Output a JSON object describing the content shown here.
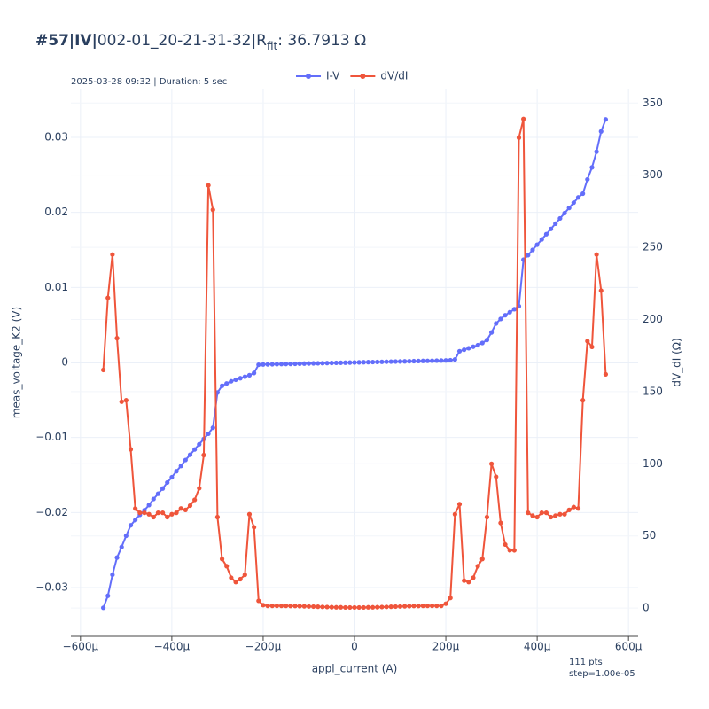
{
  "chart_data": {
    "type": "line",
    "title_bold": "#57|IV|",
    "title_main": "002-01_20-21-31-32|R",
    "title_sub": "fit",
    "title_tail": ": 36.7913 Ω",
    "subtitle": "2025-03-28 09:32 | Duration: 5 sec",
    "annotations": [
      "111 pts",
      "step=1.00e-05"
    ],
    "x_label": "appl_current (A)",
    "y_label": "meas_voltage_K2 (V)",
    "y2_label": "dV_dI (Ω)",
    "legend": "top",
    "grid": true,
    "xlim": [
      -0.000621,
      0.000621
    ],
    "ylim": [
      -0.0365,
      0.0365
    ],
    "y2lim": [
      -19.6,
      360
    ],
    "xticks": [
      {
        "value": -0.0006,
        "label": "−600µ"
      },
      {
        "value": -0.0004,
        "label": "−400µ"
      },
      {
        "value": -0.0002,
        "label": "−200µ"
      },
      0,
      {
        "value": 0.0002,
        "label": "200µ"
      },
      {
        "value": 0.0004,
        "label": "400µ"
      },
      {
        "value": 0.0006,
        "label": "600µ"
      }
    ],
    "yticks": [
      {
        "value": -0.03,
        "label": "−0.03"
      },
      {
        "value": -0.02,
        "label": "−0.02"
      },
      {
        "value": -0.01,
        "label": "−0.01"
      },
      0,
      0.01,
      0.02,
      0.03
    ],
    "y2ticks": [
      0,
      50,
      100,
      150,
      200,
      250,
      300,
      350
    ],
    "x": [
      -0.00055,
      -0.00054,
      -0.00053,
      -0.00052,
      -0.00051,
      -0.0005,
      -0.00049,
      -0.00048,
      -0.00047,
      -0.00046,
      -0.00045,
      -0.00044,
      -0.00043,
      -0.00042,
      -0.00041,
      -0.0004,
      -0.00039,
      -0.00038,
      -0.00037,
      -0.00036,
      -0.00035,
      -0.00034,
      -0.00033,
      -0.00032,
      -0.00031,
      -0.0003,
      -0.00029,
      -0.00028,
      -0.00027,
      -0.00026,
      -0.00025,
      -0.00024,
      -0.00023,
      -0.00022,
      -0.00021,
      -0.0002,
      -0.00019,
      -0.00018,
      -0.00017,
      -0.00016,
      -0.00015,
      -0.00014,
      -0.00013,
      -0.00012,
      -0.00011,
      -0.0001,
      -9e-05,
      -8e-05,
      -7e-05,
      -6e-05,
      -5e-05,
      -4e-05,
      -3e-05,
      -2e-05,
      -1e-05,
      0,
      1e-05,
      2e-05,
      3e-05,
      4e-05,
      5e-05,
      6e-05,
      7e-05,
      8e-05,
      9e-05,
      0.0001,
      0.00011,
      0.00012,
      0.00013,
      0.00014,
      0.00015,
      0.00016,
      0.00017,
      0.00018,
      0.00019,
      0.0002,
      0.00021,
      0.00022,
      0.00023,
      0.00024,
      0.00025,
      0.00026,
      0.00027,
      0.00028,
      0.00029,
      0.0003,
      0.00031,
      0.00032,
      0.00033,
      0.00034,
      0.00035,
      0.00036,
      0.00037,
      0.00038,
      0.00039,
      0.0004,
      0.00041,
      0.00042,
      0.00043,
      0.00044,
      0.00045,
      0.00046,
      0.00047,
      0.00048,
      0.00049,
      0.0005,
      0.00051,
      0.00052,
      0.00053,
      0.00054,
      0.00055
    ],
    "series": [
      {
        "name": "I-V",
        "color": "#636efa",
        "axis": "y",
        "values": [
          -0.0327,
          -0.0311,
          -0.0283,
          -0.026,
          -0.0246,
          -0.0231,
          -0.0217,
          -0.021,
          -0.0203,
          -0.0197,
          -0.019,
          -0.0182,
          -0.0175,
          -0.0168,
          -0.016,
          -0.0153,
          -0.0145,
          -0.0138,
          -0.013,
          -0.0123,
          -0.0116,
          -0.0109,
          -0.0102,
          -0.0095,
          -0.0087,
          -0.004,
          -0.0031,
          -0.0028,
          -0.0025,
          -0.0023,
          -0.0021,
          -0.0019,
          -0.0017,
          -0.0014,
          -0.0003,
          -0.00027,
          -0.000257,
          -0.000243,
          -0.00023,
          -0.000216,
          -0.000203,
          -0.000189,
          -0.000176,
          -0.000162,
          -0.000149,
          -0.000135,
          -0.000122,
          -0.000108,
          -9.45e-05,
          -8.1e-05,
          -6.75e-05,
          -5.4e-05,
          -4.05e-05,
          -2.7e-05,
          -1.35e-05,
          0,
          1.35e-05,
          2.7e-05,
          4.05e-05,
          5.4e-05,
          6.75e-05,
          8.1e-05,
          9.45e-05,
          0.000108,
          0.000122,
          0.000135,
          0.000149,
          0.000162,
          0.000176,
          0.000189,
          0.000203,
          0.000216,
          0.00023,
          0.000243,
          0.000257,
          0.00027,
          0.0003,
          0.0004,
          0.0015,
          0.0017,
          0.0019,
          0.0021,
          0.0023,
          0.0026,
          0.003,
          0.004,
          0.0052,
          0.0058,
          0.0063,
          0.0067,
          0.0071,
          0.0075,
          0.0137,
          0.0143,
          0.015,
          0.0157,
          0.0164,
          0.0171,
          0.0178,
          0.0185,
          0.0192,
          0.0199,
          0.0206,
          0.0213,
          0.022,
          0.0225,
          0.0244,
          0.026,
          0.0281,
          0.0308,
          0.0324
        ]
      },
      {
        "name": "dV/dI",
        "color": "#ef553b",
        "axis": "y2",
        "values": [
          165,
          215,
          245,
          187,
          143,
          144,
          110,
          69,
          66,
          66,
          65,
          63,
          66,
          66,
          63,
          65,
          66,
          69,
          68,
          71,
          75,
          83,
          106,
          293,
          276,
          63,
          34,
          29,
          21,
          18,
          20,
          23,
          65,
          56,
          5,
          2,
          1.5,
          1.5,
          1.5,
          1.5,
          1.5,
          1.4,
          1.4,
          1.3,
          1.2,
          1.1,
          1,
          0.9,
          0.8,
          0.7,
          0.6,
          0.5,
          0.5,
          0.4,
          0.4,
          0.4,
          0.4,
          0.4,
          0.5,
          0.5,
          0.6,
          0.7,
          0.8,
          0.9,
          1,
          1.1,
          1.2,
          1.3,
          1.4,
          1.4,
          1.5,
          1.5,
          1.5,
          1.5,
          1.5,
          3,
          7,
          65,
          72,
          19,
          18,
          21,
          29,
          34,
          63,
          100,
          91,
          59,
          44,
          40,
          40,
          326,
          339,
          66,
          64,
          63,
          66,
          66,
          63,
          64,
          65,
          65,
          68,
          70,
          69,
          144,
          185,
          181,
          245,
          220,
          162
        ]
      }
    ]
  }
}
